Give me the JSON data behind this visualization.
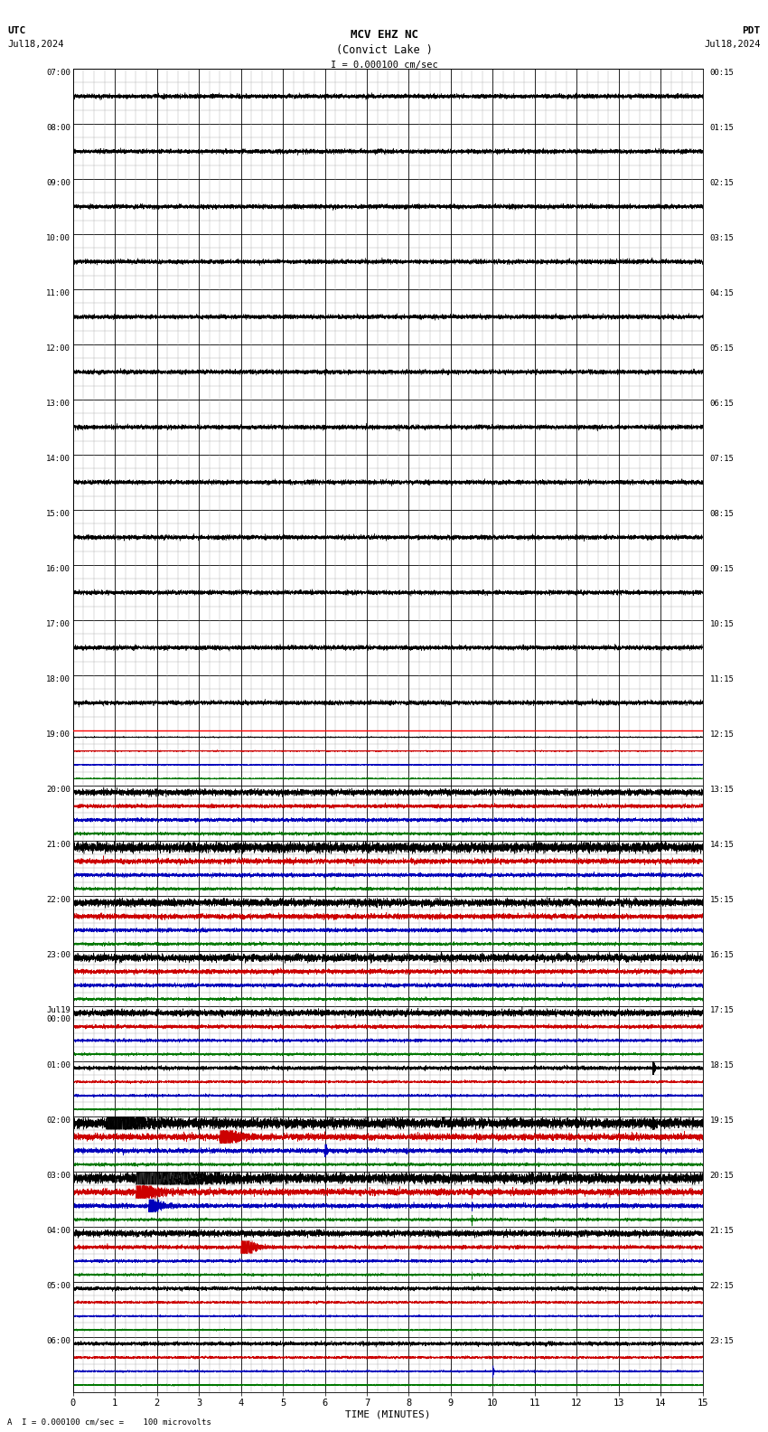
{
  "title_line1": "MCV EHZ NC",
  "title_line2": "(Convict Lake )",
  "scale_label": "I = 0.000100 cm/sec",
  "left_label": "UTC",
  "left_date": "Jul18,2024",
  "right_label": "PDT",
  "right_date": "Jul18,2024",
  "bottom_label": "TIME (MINUTES)",
  "bottom_note": "A  I = 0.000100 cm/sec =    100 microvolts",
  "utc_times": [
    "07:00",
    "08:00",
    "09:00",
    "10:00",
    "11:00",
    "12:00",
    "13:00",
    "14:00",
    "15:00",
    "16:00",
    "17:00",
    "18:00",
    "19:00",
    "20:00",
    "21:00",
    "22:00",
    "23:00",
    "Jul19\n00:00",
    "01:00",
    "02:00",
    "03:00",
    "04:00",
    "05:00",
    "06:00"
  ],
  "pdt_times": [
    "00:15",
    "01:15",
    "02:15",
    "03:15",
    "04:15",
    "05:15",
    "06:15",
    "07:15",
    "08:15",
    "09:15",
    "10:15",
    "11:15",
    "12:15",
    "13:15",
    "14:15",
    "15:15",
    "16:15",
    "17:15",
    "18:15",
    "19:15",
    "20:15",
    "21:15",
    "22:15",
    "23:15"
  ],
  "n_rows": 24,
  "n_cols": 15,
  "bg_color": "#ffffff",
  "major_grid_color": "#000000",
  "minor_grid_color": "#aaaaaa",
  "trace_black": "#000000",
  "trace_blue": "#0000bb",
  "trace_red": "#cc0000",
  "trace_green": "#007700",
  "red_line_row": 12,
  "n_pts": 9000,
  "minor_per_major": 4
}
